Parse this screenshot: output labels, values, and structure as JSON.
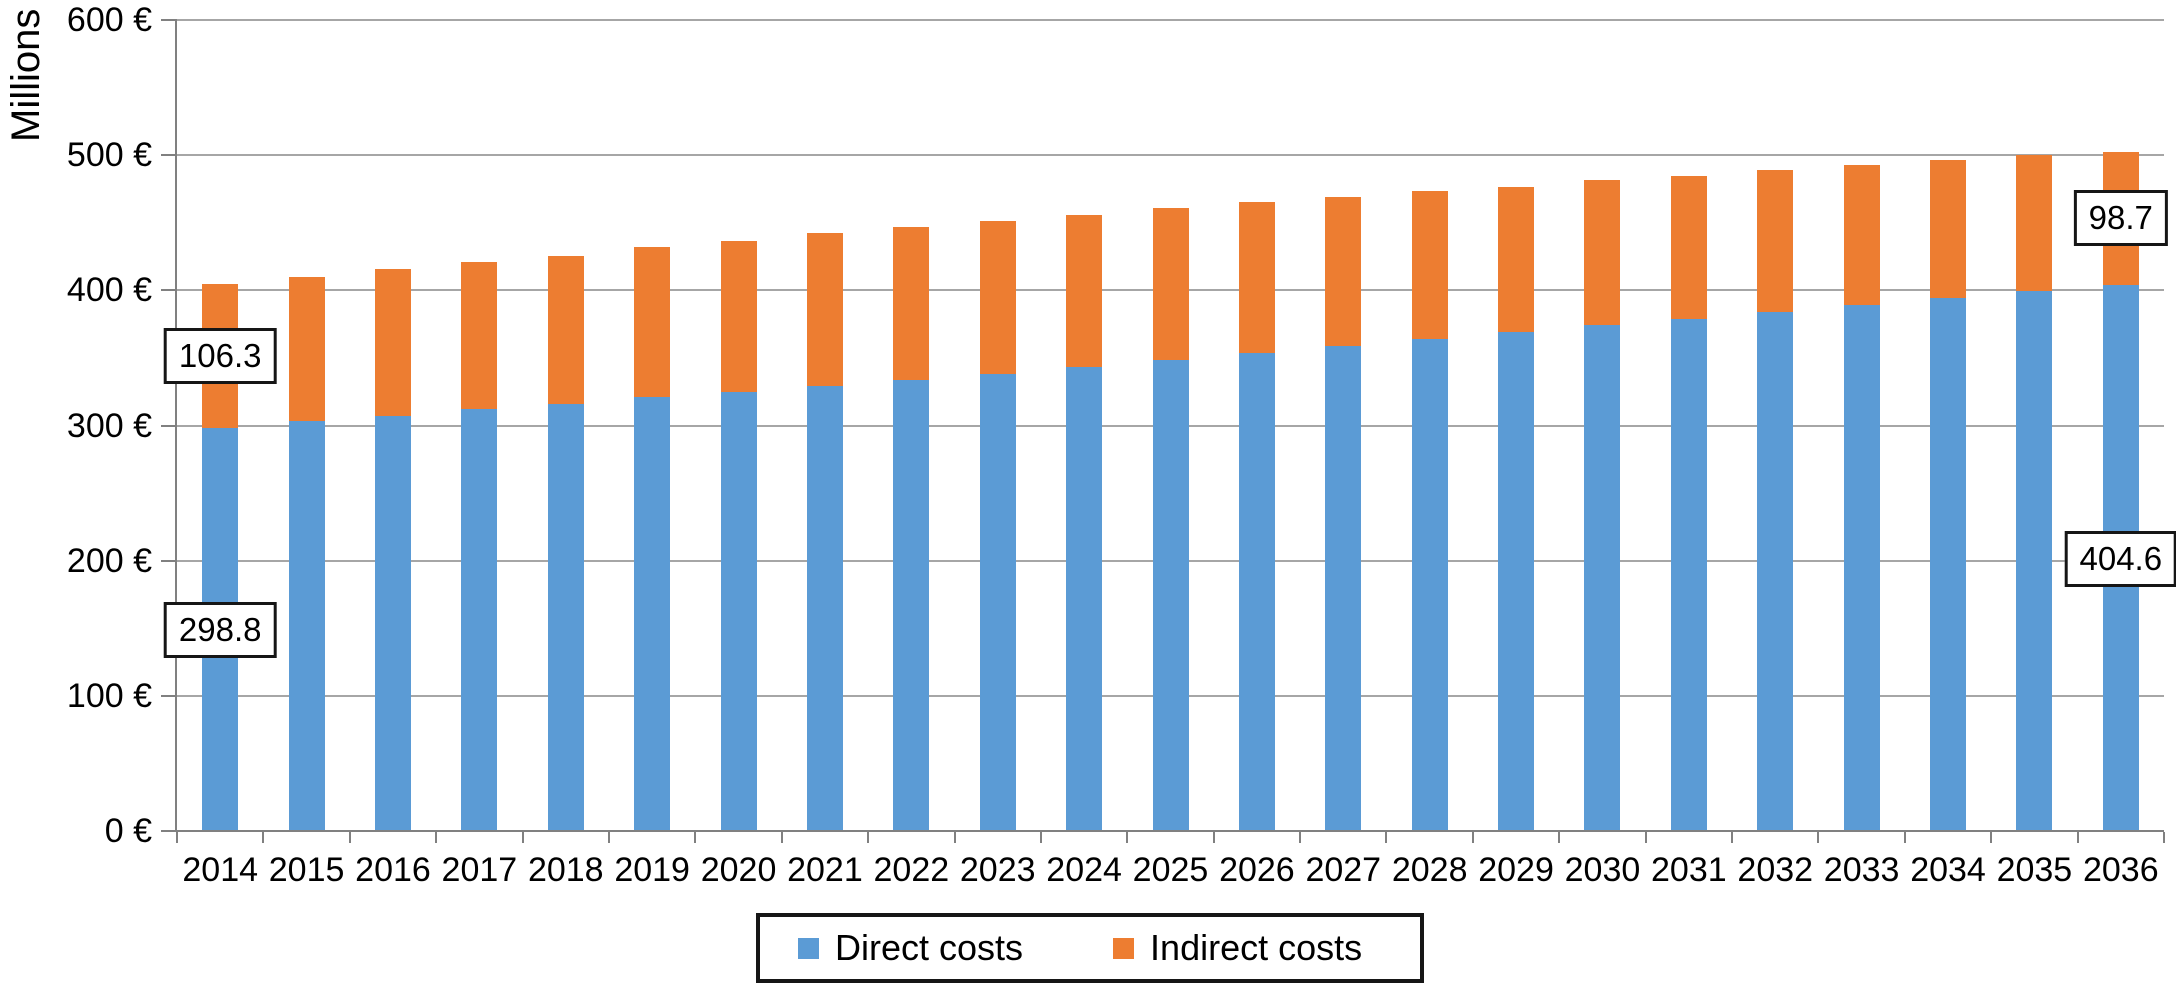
{
  "chart_data": {
    "type": "bar",
    "stacked": true,
    "title": "",
    "xlabel": "",
    "ylabel": "Millions",
    "ylim": [
      0,
      600
    ],
    "y_tick_step": 100,
    "y_ticks": [
      "0 €",
      "100 €",
      "200 €",
      "300 €",
      "400 €",
      "500 €",
      "600 €"
    ],
    "grid": true,
    "legend_position": "bottom",
    "categories": [
      "2014",
      "2015",
      "2016",
      "2017",
      "2018",
      "2019",
      "2020",
      "2021",
      "2022",
      "2023",
      "2024",
      "2025",
      "2026",
      "2027",
      "2028",
      "2029",
      "2030",
      "2031",
      "2032",
      "2033",
      "2034",
      "2035",
      "2036"
    ],
    "series": [
      {
        "name": "Direct costs",
        "color": "#5B9BD5",
        "values": [
          298.8,
          303.7,
          307.9,
          312.6,
          316.8,
          321.5,
          325.5,
          330.0,
          334.3,
          338.8,
          343.7,
          349.0,
          354.2,
          359.3,
          364.4,
          369.6,
          374.8,
          379.6,
          384.8,
          390.0,
          395.2,
          400.0,
          404.6
        ]
      },
      {
        "name": "Indirect costs",
        "color": "#ED7D31",
        "values": [
          106.3,
          106.7,
          108.4,
          108.9,
          109.2,
          111.1,
          111.5,
          113.0,
          113.1,
          113.1,
          112.6,
          112.5,
          111.7,
          110.3,
          109.7,
          107.4,
          107.4,
          105.6,
          104.8,
          103.3,
          101.8,
          100.7,
          98.7
        ]
      }
    ],
    "annotations": [
      {
        "text": "106.3",
        "year": "2014",
        "series": "Indirect costs"
      },
      {
        "text": "298.8",
        "year": "2014",
        "series": "Direct costs"
      },
      {
        "text": "98.7",
        "year": "2036",
        "series": "Indirect costs"
      },
      {
        "text": "404.6",
        "year": "2036",
        "series": "Direct costs"
      }
    ]
  },
  "colors": {
    "direct": "#5B9BD5",
    "indirect": "#ED7D31",
    "gridline": "#A6A6A6",
    "axis": "#808080",
    "text": "#000000"
  }
}
